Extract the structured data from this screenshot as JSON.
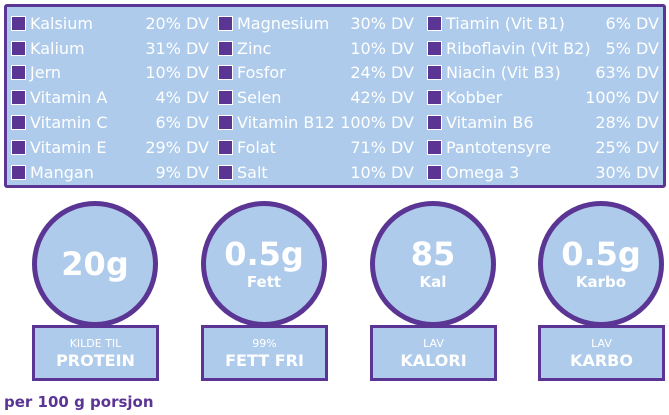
{
  "nutrients": {
    "col1": [
      {
        "name": "Kalsium",
        "value": "20% DV"
      },
      {
        "name": "Kalium",
        "value": "31% DV"
      },
      {
        "name": "Jern",
        "value": "10% DV"
      },
      {
        "name": "Vitamin A",
        "value": "4% DV"
      },
      {
        "name": "Vitamin C",
        "value": "6% DV"
      },
      {
        "name": "Vitamin E",
        "value": "29% DV"
      },
      {
        "name": "Mangan",
        "value": "9% DV"
      }
    ],
    "col2": [
      {
        "name": "Magnesium",
        "value": "30% DV"
      },
      {
        "name": "Zinc",
        "value": "10% DV"
      },
      {
        "name": "Fosfor",
        "value": "24% DV"
      },
      {
        "name": "Selen",
        "value": "42% DV"
      },
      {
        "name": "Vitamin B12",
        "value": "100% DV"
      },
      {
        "name": "Folat",
        "value": "71% DV"
      },
      {
        "name": "Salt",
        "value": "10% DV"
      }
    ],
    "col3": [
      {
        "name": "Tiamin (Vit B1)",
        "value": "6% DV"
      },
      {
        "name": "Riboflavin (Vit B2)",
        "value": "5% DV"
      },
      {
        "name": "Niacin (Vit B3)",
        "value": "63% DV"
      },
      {
        "name": "Kobber",
        "value": "100% DV"
      },
      {
        "name": "Vitamin B6",
        "value": "28% DV"
      },
      {
        "name": "Pantotensyre",
        "value": "25% DV"
      },
      {
        "name": "Omega 3",
        "value": "30% DV"
      }
    ]
  },
  "badges": [
    {
      "big": "20g",
      "small": "",
      "line1": "KILDE TIL",
      "line2": "PROTEIN"
    },
    {
      "big": "0.5g",
      "small": "Fett",
      "line1": "99%",
      "line2": "FETT FRI"
    },
    {
      "big": "85",
      "small": "Kal",
      "line1": "LAV",
      "line2": "KALORI"
    },
    {
      "big": "0.5g",
      "small": "Karbo",
      "line1": "LAV",
      "line2": "KARBO"
    }
  ],
  "footnote": "per 100 g porsjon",
  "colors": {
    "accent": "#5a3593",
    "fill": "#aecbeb"
  }
}
